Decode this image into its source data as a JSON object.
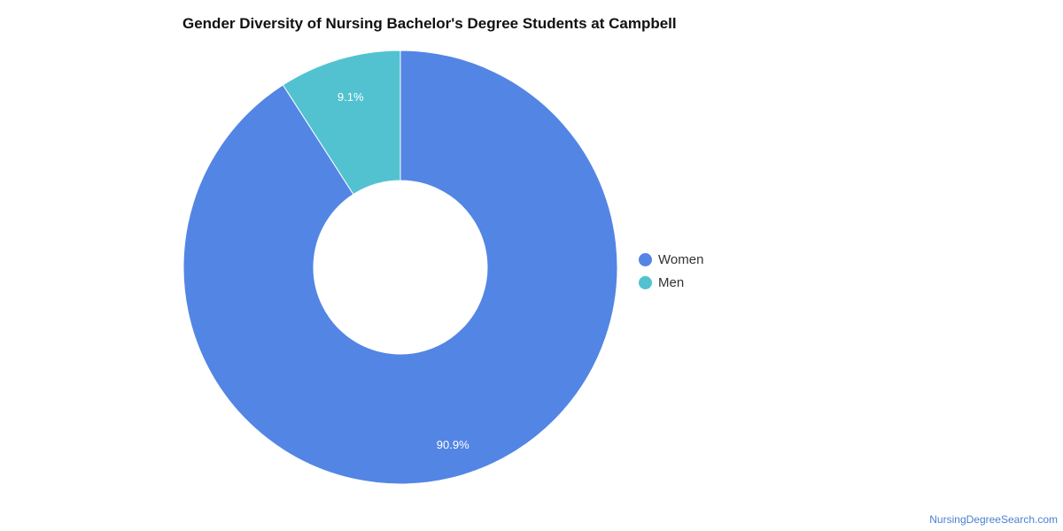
{
  "chart_data": {
    "type": "pie",
    "title": "Gender Diversity of Nursing Bachelor's Degree Students at Campbell",
    "categories": [
      "Women",
      "Men"
    ],
    "values": [
      90.9,
      9.1
    ],
    "value_labels": [
      "90.9%",
      "9.1%"
    ],
    "colors": [
      "#5385e4",
      "#52c2d0"
    ],
    "legend_position": "right"
  },
  "legend": {
    "items": [
      {
        "label": "Women",
        "color": "#5385e4"
      },
      {
        "label": "Men",
        "color": "#52c2d0"
      }
    ]
  },
  "footer": {
    "source": "NursingDegreeSearch.com"
  }
}
